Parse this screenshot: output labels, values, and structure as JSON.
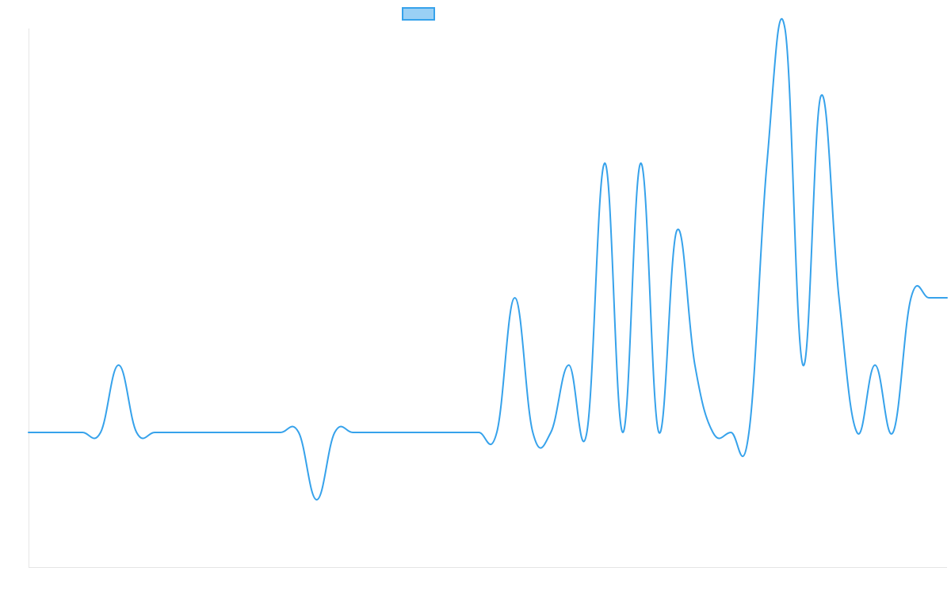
{
  "chart_data": {
    "type": "line",
    "title": "",
    "xlabel": "",
    "ylabel": "",
    "grid": false,
    "legend": "top-center",
    "ylim": [
      -2,
      6
    ],
    "x": [
      0,
      1,
      2,
      3,
      4,
      5,
      6,
      7,
      8,
      9,
      10,
      11,
      12,
      13,
      14,
      15,
      16,
      17,
      18,
      19,
      20,
      21,
      22,
      23,
      24,
      25,
      26,
      27,
      28,
      29,
      30,
      31,
      32,
      33,
      34,
      35,
      36,
      37,
      38,
      39,
      40,
      41,
      42,
      43,
      44,
      45,
      46,
      47,
      48,
      49,
      50,
      51
    ],
    "series": [
      {
        "values": [
          0,
          0,
          0,
          0,
          0,
          1,
          0,
          0,
          0,
          0,
          0,
          0,
          0,
          0,
          0,
          0,
          -1,
          0,
          0,
          0,
          0,
          0,
          0,
          0,
          0,
          0,
          0,
          2,
          0,
          0,
          1,
          0,
          4,
          0,
          4,
          0,
          3,
          1,
          0,
          0,
          0,
          4,
          6,
          1,
          5,
          2,
          0,
          1,
          0,
          2,
          2,
          2
        ],
        "color": "#36a2eb"
      }
    ]
  }
}
